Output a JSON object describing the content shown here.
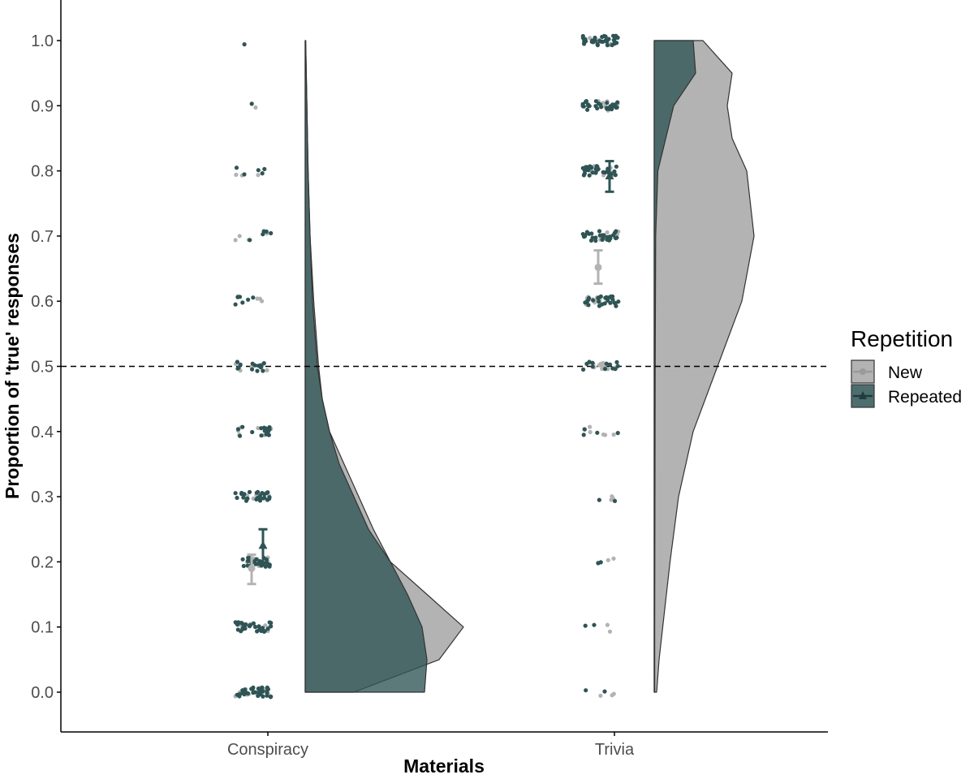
{
  "chart_data": {
    "type": "raincloud",
    "xlabel": "Materials",
    "ylabel": "Proportion of 'true' responses",
    "categories": [
      "Conspiracy",
      "Trivia"
    ],
    "ylim": [
      -0.06,
      1.06
    ],
    "yticks": [
      "0.0",
      "0.1",
      "0.2",
      "0.3",
      "0.4",
      "0.5",
      "0.6",
      "0.7",
      "0.8",
      "0.9",
      "1.0"
    ],
    "reference_line": 0.5,
    "grid": false,
    "legend": {
      "title": "Repetition",
      "placement": "right",
      "entries": [
        "New",
        "Repeated"
      ]
    },
    "colors": {
      "New": "#b3b3b3",
      "Repeated": "#2f5455"
    },
    "means": [
      {
        "category": "Conspiracy",
        "group": "New",
        "mean": 0.19,
        "ci": [
          0.166,
          0.211
        ]
      },
      {
        "category": "Conspiracy",
        "group": "Repeated",
        "mean": 0.225,
        "ci": [
          0.199,
          0.25
        ]
      },
      {
        "category": "Trivia",
        "group": "New",
        "mean": 0.652,
        "ci": [
          0.627,
          0.678
        ]
      },
      {
        "category": "Trivia",
        "group": "Repeated",
        "mean": 0.792,
        "ci": [
          0.768,
          0.815
        ]
      }
    ],
    "density": {
      "Conspiracy": {
        "New": [
          [
            0,
            0.2
          ],
          [
            0.05,
            0.55
          ],
          [
            0.1,
            0.65
          ],
          [
            0.15,
            0.5
          ],
          [
            0.2,
            0.35
          ],
          [
            0.25,
            0.28
          ],
          [
            0.3,
            0.22
          ],
          [
            0.35,
            0.16
          ],
          [
            0.4,
            0.1
          ],
          [
            0.45,
            0.07
          ],
          [
            0.5,
            0.055
          ],
          [
            0.55,
            0.045
          ],
          [
            0.6,
            0.035
          ],
          [
            0.7,
            0.02
          ],
          [
            0.8,
            0.012
          ],
          [
            0.9,
            0.007
          ],
          [
            1,
            0.002
          ]
        ],
        "Repeated": [
          [
            0,
            0.49
          ],
          [
            0.05,
            0.5
          ],
          [
            0.1,
            0.48
          ],
          [
            0.15,
            0.42
          ],
          [
            0.2,
            0.35
          ],
          [
            0.25,
            0.26
          ],
          [
            0.3,
            0.2
          ],
          [
            0.35,
            0.14
          ],
          [
            0.4,
            0.1
          ],
          [
            0.45,
            0.07
          ],
          [
            0.5,
            0.05
          ],
          [
            0.55,
            0.04
          ],
          [
            0.6,
            0.03
          ],
          [
            0.7,
            0.02
          ],
          [
            0.8,
            0.012
          ],
          [
            0.9,
            0.007
          ],
          [
            1,
            0.002
          ]
        ]
      },
      "Trivia": {
        "New": [
          [
            0,
            0.01
          ],
          [
            0.05,
            0.02
          ],
          [
            0.1,
            0.035
          ],
          [
            0.2,
            0.065
          ],
          [
            0.3,
            0.1
          ],
          [
            0.4,
            0.16
          ],
          [
            0.5,
            0.26
          ],
          [
            0.6,
            0.36
          ],
          [
            0.7,
            0.41
          ],
          [
            0.8,
            0.38
          ],
          [
            0.85,
            0.32
          ],
          [
            0.9,
            0.3
          ],
          [
            0.95,
            0.32
          ],
          [
            1,
            0.2
          ]
        ],
        "Repeated": [
          [
            0,
            0.002
          ],
          [
            0.1,
            0.002
          ],
          [
            0.3,
            0.003
          ],
          [
            0.5,
            0.004
          ],
          [
            0.7,
            0.006
          ],
          [
            0.8,
            0.015
          ],
          [
            0.9,
            0.08
          ],
          [
            0.95,
            0.17
          ],
          [
            1,
            0.16
          ]
        ]
      }
    },
    "jitter_values": [
      "0.0",
      "0.1",
      "0.2",
      "0.3",
      "0.4",
      "0.5",
      "0.6",
      "0.7",
      "0.8",
      "0.9",
      "1.0"
    ],
    "jitter_counts": {
      "Conspiracy": {
        "New": [
          14,
          10,
          10,
          6,
          6,
          6,
          4,
          4,
          3,
          1,
          0
        ],
        "Repeated": [
          32,
          30,
          28,
          26,
          14,
          14,
          6,
          5,
          5,
          1,
          1
        ]
      },
      "Trivia": {
        "New": [
          3,
          2,
          2,
          3,
          6,
          12,
          12,
          8,
          10,
          8,
          6
        ],
        "Repeated": [
          2,
          2,
          3,
          2,
          4,
          12,
          26,
          30,
          30,
          32,
          34
        ]
      }
    }
  }
}
